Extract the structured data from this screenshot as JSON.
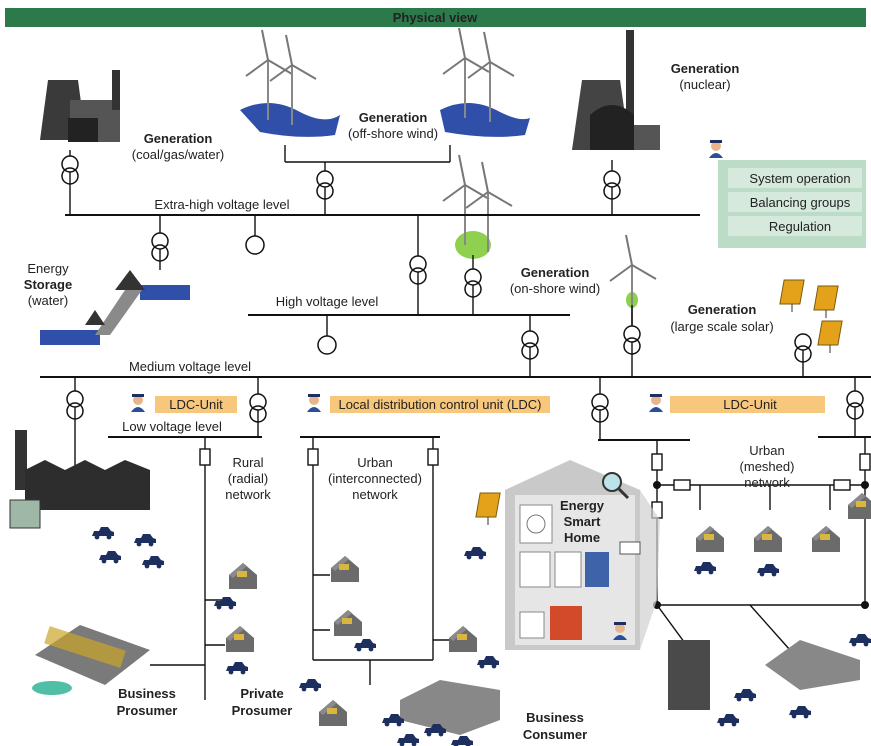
{
  "header": {
    "title": "Physical view"
  },
  "generation": {
    "coal": {
      "title": "Generation",
      "subtitle": "(coal/gas/water)"
    },
    "offshore": {
      "title": "Generation",
      "subtitle": "(off-shore wind)"
    },
    "nuclear": {
      "title": "Generation",
      "subtitle": "(nuclear)"
    },
    "onshore": {
      "title": "Generation",
      "subtitle": "(on-shore wind)"
    },
    "solar": {
      "title": "Generation",
      "subtitle": "(large scale solar)"
    }
  },
  "system_panel": {
    "items": [
      "System operation",
      "Balancing groups",
      "Regulation"
    ]
  },
  "voltage_levels": {
    "extra_high": "Extra-high voltage level",
    "high": "High voltage level",
    "medium": "Medium voltage level",
    "low": "Low voltage level"
  },
  "storage": {
    "lines": [
      "Energy",
      "Storage",
      "(water)"
    ]
  },
  "ldc": [
    "LDC-Unit",
    "Local distribution control unit (LDC)",
    "LDC-Unit"
  ],
  "networks": {
    "rural": [
      "Rural",
      "(radial)",
      "network"
    ],
    "urban_interconnected": [
      "Urban",
      "(interconnected)",
      "network"
    ],
    "urban_meshed": [
      "Urban",
      "(meshed)",
      "network"
    ]
  },
  "smart_home": [
    "Energy",
    "Smart",
    "Home"
  ],
  "actors": {
    "business_prosumer": [
      "Business",
      "Prosumer"
    ],
    "private_prosumer": [
      "Private",
      "Prosumer"
    ],
    "business_consumer": [
      "Business",
      "Consumer"
    ]
  }
}
